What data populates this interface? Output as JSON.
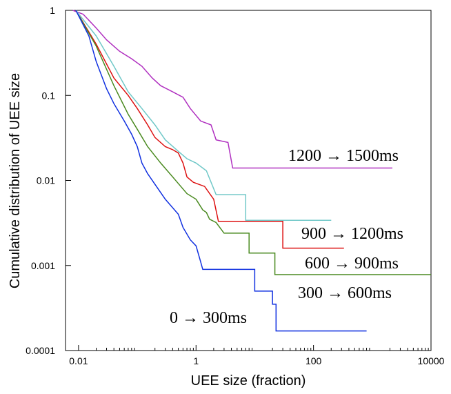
{
  "chart_data": {
    "type": "line",
    "title": "",
    "xlabel": "UEE size (fraction)",
    "ylabel": "Cumulative distribution of UEE size",
    "xscale": "log",
    "yscale": "log",
    "xlim": [
      0.006,
      10000
    ],
    "ylim": [
      0.0001,
      1
    ],
    "grid": false,
    "legend": "inline labels beside each curve",
    "x_ticks": [
      {
        "value": 0.01,
        "label": "0.01"
      },
      {
        "value": 1,
        "label": "1"
      },
      {
        "value": 100,
        "label": "100"
      },
      {
        "value": 10000,
        "label": "10000"
      }
    ],
    "y_ticks": [
      {
        "value": 1,
        "label": "1"
      },
      {
        "value": 0.1,
        "label": "0.1"
      },
      {
        "value": 0.01,
        "label": "0.01"
      },
      {
        "value": 0.001,
        "label": "0.001"
      },
      {
        "value": 0.0001,
        "label": "0.0001"
      }
    ],
    "series": [
      {
        "name": "1200 → 1500ms",
        "color": "#b030c0",
        "points": [
          [
            0.008,
            1.0
          ],
          [
            0.012,
            0.9
          ],
          [
            0.02,
            0.62
          ],
          [
            0.03,
            0.45
          ],
          [
            0.05,
            0.33
          ],
          [
            0.08,
            0.27
          ],
          [
            0.12,
            0.22
          ],
          [
            0.18,
            0.16
          ],
          [
            0.25,
            0.13
          ],
          [
            0.4,
            0.11
          ],
          [
            0.6,
            0.095
          ],
          [
            0.8,
            0.07
          ],
          [
            1.2,
            0.05
          ],
          [
            1.8,
            0.045
          ],
          [
            2.2,
            0.03
          ],
          [
            3.5,
            0.028
          ],
          [
            4.2,
            0.014
          ],
          [
            2200,
            0.014
          ]
        ]
      },
      {
        "name": "900 → 1200ms",
        "color": "#dd1111",
        "points": [
          [
            0.009,
            1.0
          ],
          [
            0.02,
            0.4
          ],
          [
            0.04,
            0.16
          ],
          [
            0.07,
            0.1
          ],
          [
            0.1,
            0.07
          ],
          [
            0.15,
            0.045
          ],
          [
            0.2,
            0.032
          ],
          [
            0.3,
            0.025
          ],
          [
            0.4,
            0.023
          ],
          [
            0.5,
            0.021
          ],
          [
            0.6,
            0.016
          ],
          [
            0.7,
            0.011
          ],
          [
            0.9,
            0.0095
          ],
          [
            1.4,
            0.0085
          ],
          [
            2.0,
            0.006
          ],
          [
            2.4,
            0.0033
          ],
          [
            30,
            0.0033
          ],
          [
            30,
            0.0016
          ],
          [
            330,
            0.0016
          ]
        ]
      },
      {
        "name": "600 → 900ms",
        "color": "#4a8a20",
        "points": [
          [
            0.009,
            1.0
          ],
          [
            0.02,
            0.38
          ],
          [
            0.04,
            0.13
          ],
          [
            0.07,
            0.06
          ],
          [
            0.1,
            0.04
          ],
          [
            0.15,
            0.025
          ],
          [
            0.25,
            0.016
          ],
          [
            0.4,
            0.011
          ],
          [
            0.7,
            0.007
          ],
          [
            1.0,
            0.006
          ],
          [
            1.3,
            0.0045
          ],
          [
            1.5,
            0.0042
          ],
          [
            1.7,
            0.0035
          ],
          [
            2.2,
            0.0032
          ],
          [
            3.0,
            0.0024
          ],
          [
            8.0,
            0.0024
          ],
          [
            8.0,
            0.0014
          ],
          [
            22,
            0.0014
          ],
          [
            22,
            0.00078
          ],
          [
            10000,
            0.00078
          ]
        ]
      },
      {
        "name": "300 → 600ms",
        "color": "#70c8c8",
        "points": [
          [
            0.009,
            1.0
          ],
          [
            0.02,
            0.5
          ],
          [
            0.04,
            0.22
          ],
          [
            0.07,
            0.11
          ],
          [
            0.12,
            0.07
          ],
          [
            0.2,
            0.045
          ],
          [
            0.3,
            0.03
          ],
          [
            0.5,
            0.022
          ],
          [
            0.7,
            0.018
          ],
          [
            1.0,
            0.016
          ],
          [
            1.5,
            0.013
          ],
          [
            2.2,
            0.0068
          ],
          [
            7.0,
            0.0068
          ],
          [
            7.0,
            0.0034
          ],
          [
            200,
            0.0034
          ]
        ]
      },
      {
        "name": "0 → 300ms",
        "color": "#1030e0",
        "points": [
          [
            0.009,
            1.0
          ],
          [
            0.015,
            0.5
          ],
          [
            0.02,
            0.25
          ],
          [
            0.03,
            0.12
          ],
          [
            0.04,
            0.08
          ],
          [
            0.06,
            0.05
          ],
          [
            0.08,
            0.035
          ],
          [
            0.1,
            0.025
          ],
          [
            0.12,
            0.016
          ],
          [
            0.15,
            0.012
          ],
          [
            0.2,
            0.009
          ],
          [
            0.3,
            0.006
          ],
          [
            0.5,
            0.004
          ],
          [
            0.6,
            0.0028
          ],
          [
            0.8,
            0.002
          ],
          [
            1.0,
            0.0017
          ],
          [
            1.2,
            0.0011
          ],
          [
            1.3,
            0.0009
          ],
          [
            10,
            0.0009
          ],
          [
            10,
            0.0005
          ],
          [
            20,
            0.0005
          ],
          [
            20,
            0.00035
          ],
          [
            23,
            0.00035
          ],
          [
            23,
            0.00017
          ],
          [
            800,
            0.00017
          ]
        ]
      }
    ]
  }
}
